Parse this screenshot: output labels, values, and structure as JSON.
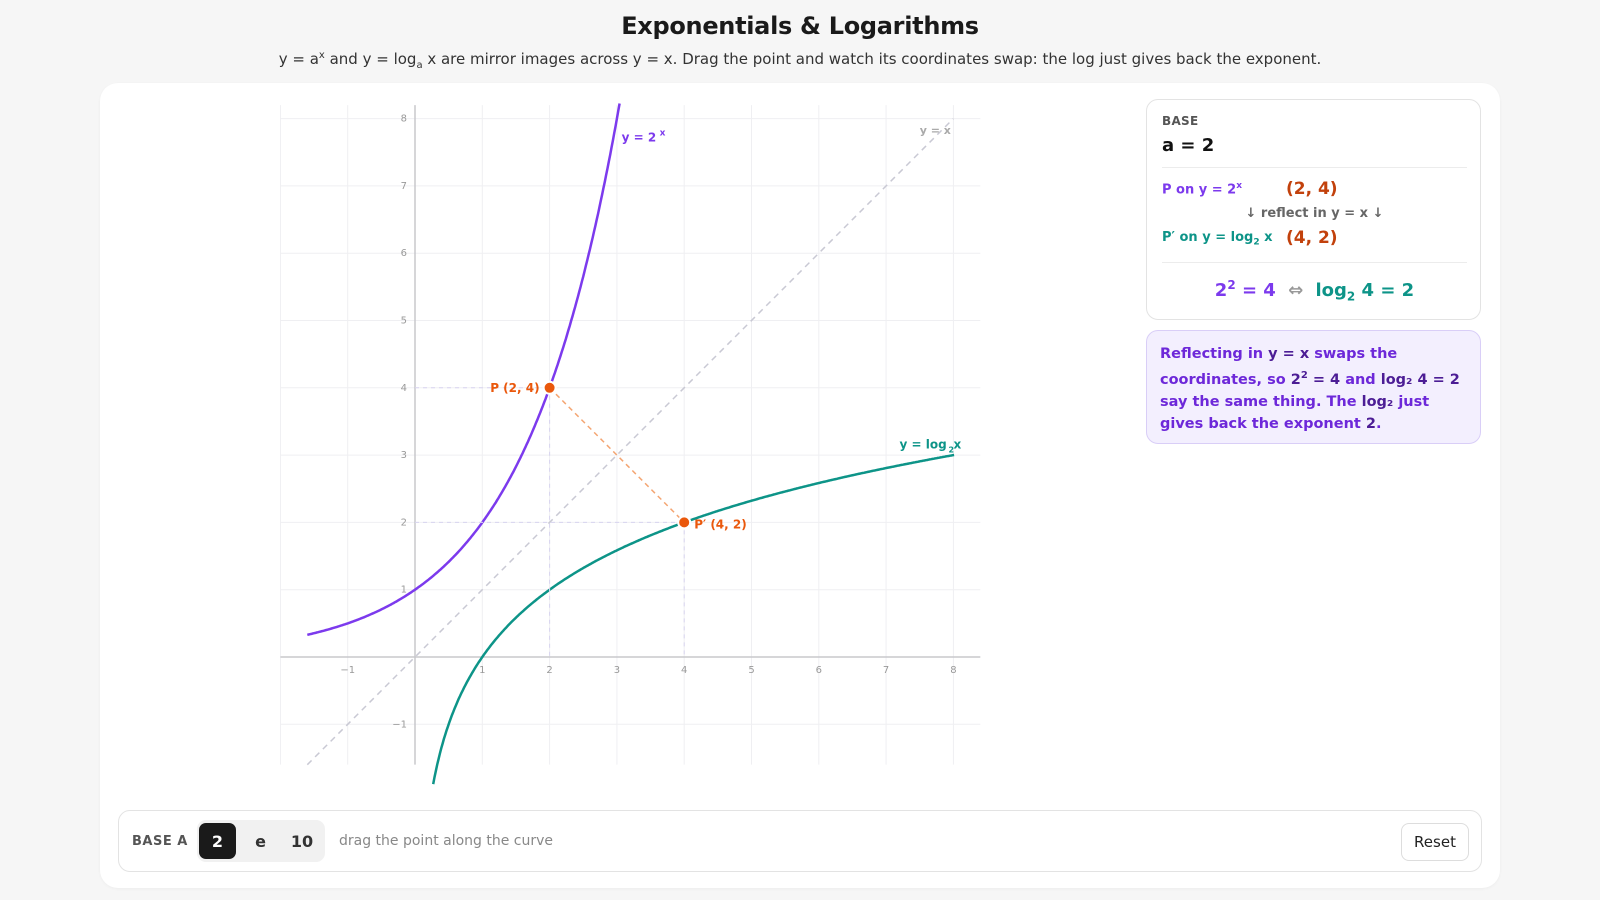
{
  "header": {
    "title": "Exponentials & Logarithms",
    "subtitle_pre": "y = a",
    "subtitle_sup": "x",
    "subtitle_mid": " and y = log",
    "subtitle_sub": "a",
    "subtitle_post": " x are mirror images across y = x. Drag the point and watch its coordinates swap: the log just gives back the exponent."
  },
  "chart_data": {
    "type": "line",
    "xlim": [
      -2,
      8.4
    ],
    "ylim": [
      -1.6,
      8.2
    ],
    "x_ticks": [
      -1,
      1,
      2,
      3,
      4,
      5,
      6,
      7,
      8
    ],
    "y_ticks": [
      -1,
      1,
      2,
      3,
      4,
      5,
      6,
      7,
      8
    ],
    "grid": true,
    "series": [
      {
        "name": "y = 2^x",
        "label_text": "y = 2",
        "label_sup": "x",
        "color": "#7c3aed",
        "kind": "exp",
        "base": 2
      },
      {
        "name": "y = log₂ x",
        "label_text": "y = log",
        "label_sub": "2",
        "label_tail": " x",
        "color": "#0d9488",
        "kind": "log",
        "base": 2
      },
      {
        "name": "y = x",
        "color": "#c9c9d4",
        "kind": "identity",
        "dashed": true
      }
    ],
    "points": [
      {
        "label": "P (2, 4)",
        "x": 2,
        "y": 4,
        "color": "#ea580c"
      },
      {
        "label": "P′ (4, 2)",
        "x": 4,
        "y": 2,
        "color": "#ea580c"
      }
    ]
  },
  "info": {
    "base_label": "BASE",
    "base_value": "a = 2",
    "p_label_pre": "P on y = 2",
    "p_label_sup": "x",
    "p_coord": "(2, 4)",
    "reflect": "↓ reflect in y = x ↓",
    "pp_label_pre": "P′ on y = log",
    "pp_label_sub": "2",
    "pp_label_post": " x",
    "pp_coord": "(4, 2)",
    "id_exp_base": "2",
    "id_exp_sup": "2",
    "id_exp_tail": " = 4",
    "id_arrow": "⇔",
    "id_log_pre": "log",
    "id_log_sub": "2",
    "id_log_tail": " 4 = 2",
    "exp_color": "#7c3aed",
    "log_color": "#0d9488"
  },
  "note": {
    "t1": "Reflecting in ",
    "b1": "y = x",
    "t2": " swaps the coordinates, so ",
    "b2a": "2",
    "b2sup": "2",
    "b2b": " = 4",
    "t3": " and ",
    "b3": "log₂ 4 = 2",
    "t4": " say the same thing. The ",
    "b4": "log₂",
    "t5": " just gives back the exponent ",
    "b5": "2",
    "t6": "."
  },
  "controls": {
    "label": "BASE A",
    "options": [
      "2",
      "e",
      "10"
    ],
    "selected": "2",
    "hint": "drag the point along the curve",
    "reset_label": "Reset"
  }
}
